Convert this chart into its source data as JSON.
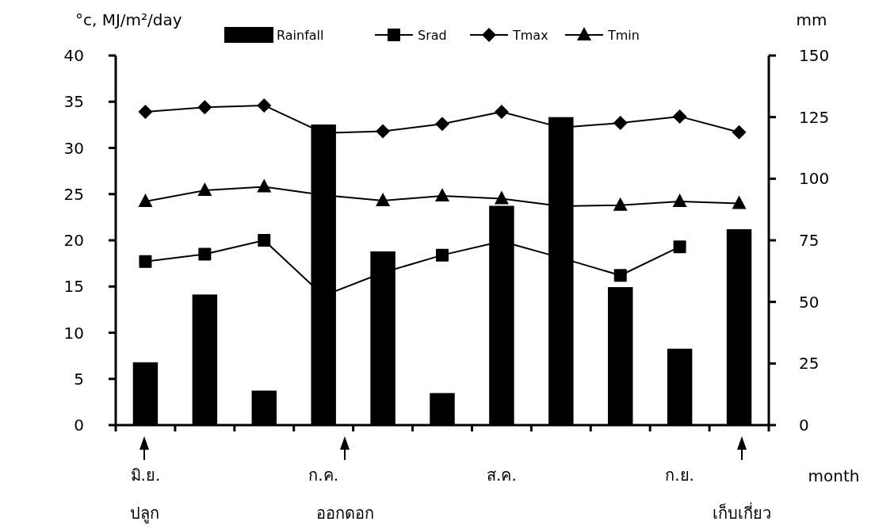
{
  "chart_data": {
    "type": "line",
    "ylabel": "°c, MJ/m²/day",
    "y2label": "mm",
    "xlabel": "month",
    "categories": [
      "มิ.ย.",
      null,
      null,
      "ก.ค.",
      null,
      null,
      "ส.ค.",
      null,
      null,
      "ก.ย.",
      null
    ],
    "ylim": [
      0,
      40
    ],
    "yticks": [
      0,
      5,
      10,
      15,
      20,
      25,
      30,
      35,
      40
    ],
    "y2lim": [
      0,
      150
    ],
    "y2ticks": [
      0,
      25,
      50,
      75,
      100,
      125,
      150
    ],
    "legend": "top",
    "grid": false,
    "series": [
      {
        "name": "Rainfall",
        "type": "bar",
        "axis": "y2",
        "color": "#000000",
        "values": [
          25.5,
          53,
          14,
          122,
          70.5,
          13,
          89,
          125,
          56,
          31,
          79.5
        ]
      },
      {
        "name": "Srad",
        "marker": "square",
        "color": "#000000",
        "values": [
          17.7,
          18.5,
          20.0,
          14.0,
          16.5,
          18.4,
          19.9,
          18.1,
          16.2,
          19.3,
          null
        ]
      },
      {
        "name": "Tmax",
        "marker": "diamond",
        "color": "#000000",
        "values": [
          33.9,
          34.4,
          34.6,
          31.6,
          31.8,
          32.6,
          33.9,
          32.2,
          32.7,
          33.4,
          31.7
        ]
      },
      {
        "name": "Tmin",
        "marker": "triangle",
        "color": "#000000",
        "values": [
          24.2,
          25.4,
          25.8,
          24.9,
          24.3,
          24.8,
          24.5,
          23.7,
          23.8,
          24.2,
          24.0
        ]
      }
    ],
    "annotations": [
      "ปลูก",
      "ออกดอก",
      "เก็บเกี่ยว"
    ]
  }
}
